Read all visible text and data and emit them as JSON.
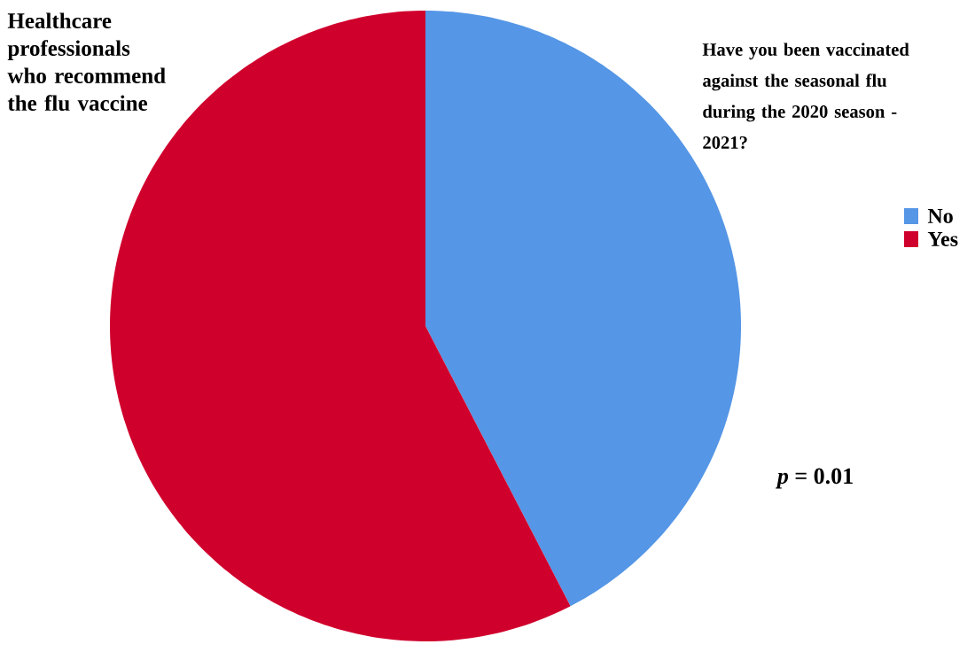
{
  "chart_data": {
    "type": "pie",
    "title": "Healthcare professionals who recommend the flu vaccine",
    "subtitle": "Have you been vaccinated against the seasonal flu during the 2020 season - 2021?",
    "categories": [
      "No",
      "Yes"
    ],
    "values": [
      42.4,
      57.6
    ],
    "colors": [
      "#5596e6",
      "#d0002d"
    ],
    "legend": "right",
    "annotations": [
      "*p* = 0.01"
    ]
  }
}
